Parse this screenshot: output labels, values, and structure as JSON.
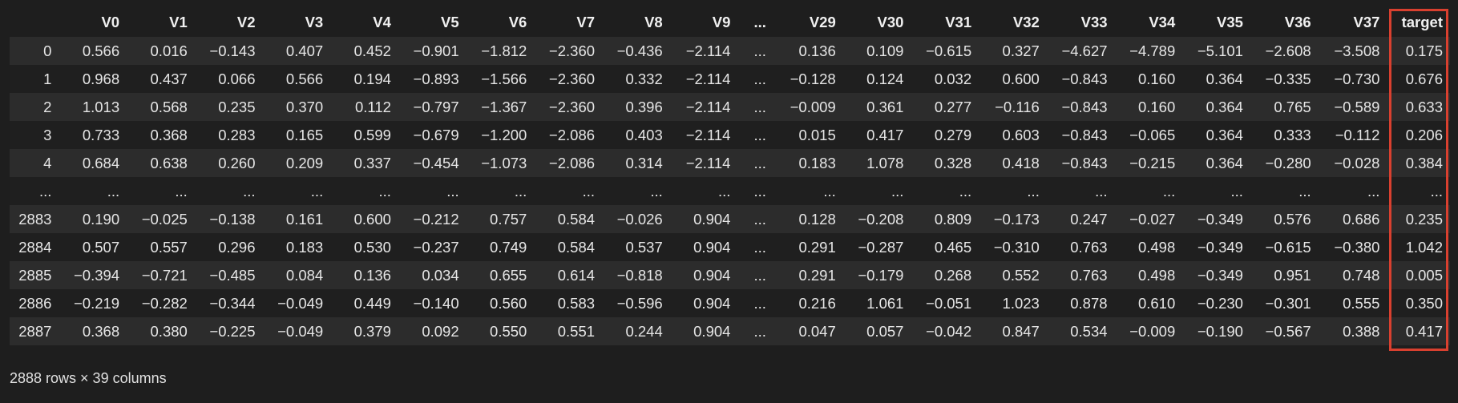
{
  "table": {
    "columns": [
      "",
      "V0",
      "V1",
      "V2",
      "V3",
      "V4",
      "V5",
      "V6",
      "V7",
      "V8",
      "V9",
      "...",
      "V29",
      "V30",
      "V31",
      "V32",
      "V33",
      "V34",
      "V35",
      "V36",
      "V37",
      "target"
    ],
    "rows": [
      [
        "0",
        "0.566",
        "0.016",
        "−0.143",
        "0.407",
        "0.452",
        "−0.901",
        "−1.812",
        "−2.360",
        "−0.436",
        "−2.114",
        "...",
        "0.136",
        "0.109",
        "−0.615",
        "0.327",
        "−4.627",
        "−4.789",
        "−5.101",
        "−2.608",
        "−3.508",
        "0.175"
      ],
      [
        "1",
        "0.968",
        "0.437",
        "0.066",
        "0.566",
        "0.194",
        "−0.893",
        "−1.566",
        "−2.360",
        "0.332",
        "−2.114",
        "...",
        "−0.128",
        "0.124",
        "0.032",
        "0.600",
        "−0.843",
        "0.160",
        "0.364",
        "−0.335",
        "−0.730",
        "0.676"
      ],
      [
        "2",
        "1.013",
        "0.568",
        "0.235",
        "0.370",
        "0.112",
        "−0.797",
        "−1.367",
        "−2.360",
        "0.396",
        "−2.114",
        "...",
        "−0.009",
        "0.361",
        "0.277",
        "−0.116",
        "−0.843",
        "0.160",
        "0.364",
        "0.765",
        "−0.589",
        "0.633"
      ],
      [
        "3",
        "0.733",
        "0.368",
        "0.283",
        "0.165",
        "0.599",
        "−0.679",
        "−1.200",
        "−2.086",
        "0.403",
        "−2.114",
        "...",
        "0.015",
        "0.417",
        "0.279",
        "0.603",
        "−0.843",
        "−0.065",
        "0.364",
        "0.333",
        "−0.112",
        "0.206"
      ],
      [
        "4",
        "0.684",
        "0.638",
        "0.260",
        "0.209",
        "0.337",
        "−0.454",
        "−1.073",
        "−2.086",
        "0.314",
        "−2.114",
        "...",
        "0.183",
        "1.078",
        "0.328",
        "0.418",
        "−0.843",
        "−0.215",
        "0.364",
        "−0.280",
        "−0.028",
        "0.384"
      ],
      [
        "...",
        "...",
        "...",
        "...",
        "...",
        "...",
        "...",
        "...",
        "...",
        "...",
        "...",
        "...",
        "...",
        "...",
        "...",
        "...",
        "...",
        "...",
        "...",
        "...",
        "...",
        "..."
      ],
      [
        "2883",
        "0.190",
        "−0.025",
        "−0.138",
        "0.161",
        "0.600",
        "−0.212",
        "0.757",
        "0.584",
        "−0.026",
        "0.904",
        "...",
        "0.128",
        "−0.208",
        "0.809",
        "−0.173",
        "0.247",
        "−0.027",
        "−0.349",
        "0.576",
        "0.686",
        "0.235"
      ],
      [
        "2884",
        "0.507",
        "0.557",
        "0.296",
        "0.183",
        "0.530",
        "−0.237",
        "0.749",
        "0.584",
        "0.537",
        "0.904",
        "...",
        "0.291",
        "−0.287",
        "0.465",
        "−0.310",
        "0.763",
        "0.498",
        "−0.349",
        "−0.615",
        "−0.380",
        "1.042"
      ],
      [
        "2885",
        "−0.394",
        "−0.721",
        "−0.485",
        "0.084",
        "0.136",
        "0.034",
        "0.655",
        "0.614",
        "−0.818",
        "0.904",
        "...",
        "0.291",
        "−0.179",
        "0.268",
        "0.552",
        "0.763",
        "0.498",
        "−0.349",
        "0.951",
        "0.748",
        "0.005"
      ],
      [
        "2886",
        "−0.219",
        "−0.282",
        "−0.344",
        "−0.049",
        "0.449",
        "−0.140",
        "0.560",
        "0.583",
        "−0.596",
        "0.904",
        "...",
        "0.216",
        "1.061",
        "−0.051",
        "1.023",
        "0.878",
        "0.610",
        "−0.230",
        "−0.301",
        "0.555",
        "0.350"
      ],
      [
        "2887",
        "0.368",
        "0.380",
        "−0.225",
        "−0.049",
        "0.379",
        "0.092",
        "0.550",
        "0.551",
        "0.244",
        "0.904",
        "...",
        "0.047",
        "0.057",
        "−0.042",
        "0.847",
        "0.534",
        "−0.009",
        "−0.190",
        "−0.567",
        "0.388",
        "0.417"
      ]
    ]
  },
  "highlight": {
    "column": "target",
    "color": "#d9402f"
  },
  "footer": {
    "summary": "2888 rows × 39 columns"
  },
  "colors": {
    "background": "#1e1e1e",
    "row_odd": "#2c2c2c",
    "row_even": "#1f1f1f",
    "text": "#e6e6e6"
  }
}
